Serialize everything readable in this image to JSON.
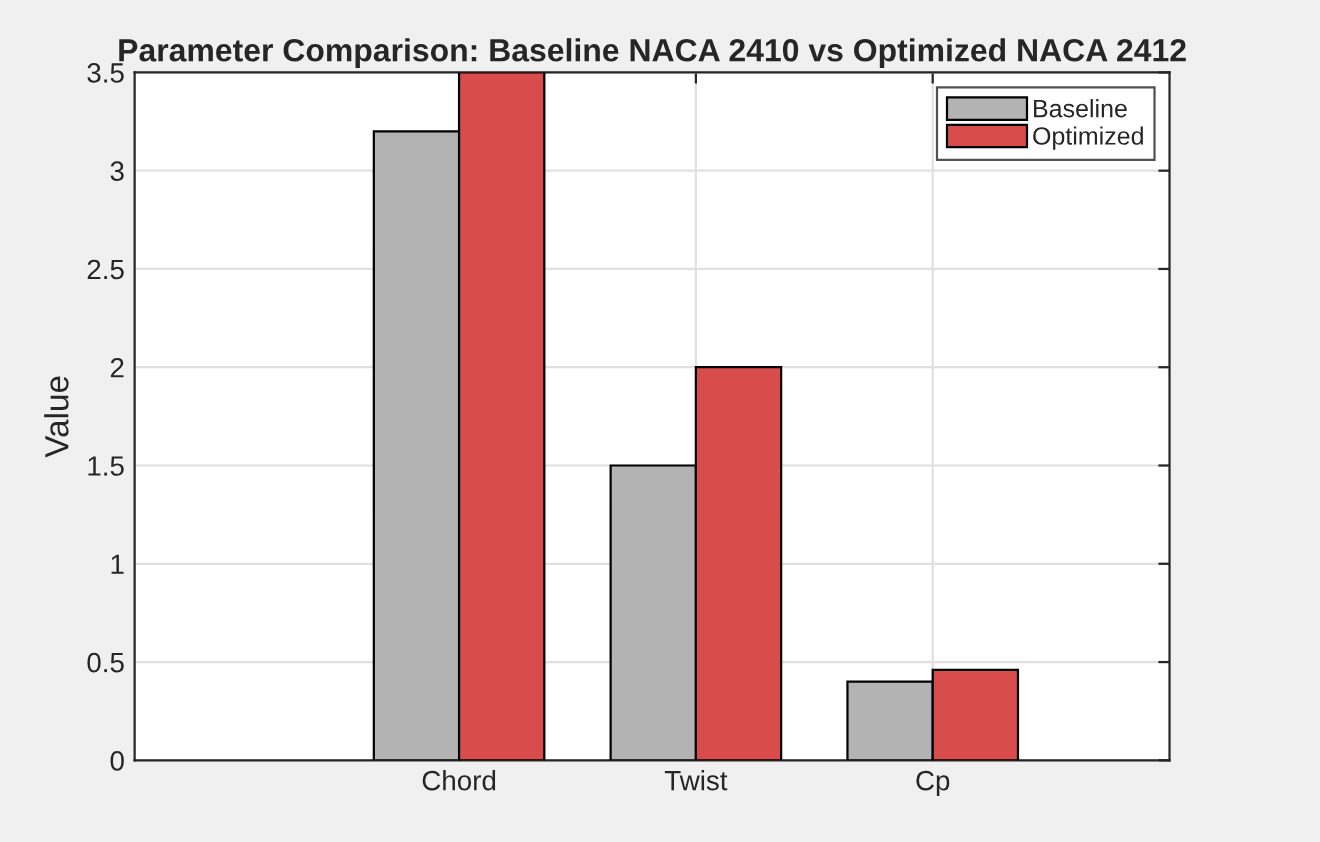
{
  "chart_data": {
    "type": "bar",
    "title": "Parameter Comparison: Baseline NACA 2410 vs Optimized NACA 2412",
    "ylabel": "Value",
    "categories": [
      "Chord",
      "Twist",
      "Cp"
    ],
    "series": [
      {
        "name": "Baseline",
        "color": "#b3b3b3",
        "values": [
          3.2,
          1.5,
          0.4
        ]
      },
      {
        "name": "Optimized",
        "color": "#d94c4c",
        "values": [
          3.5,
          2.0,
          0.46
        ]
      }
    ],
    "ylim": [
      0,
      3.5
    ],
    "yticks": [
      0,
      0.5,
      1,
      1.5,
      2,
      2.5,
      3,
      3.5
    ],
    "grid": true,
    "legend": "top right"
  }
}
